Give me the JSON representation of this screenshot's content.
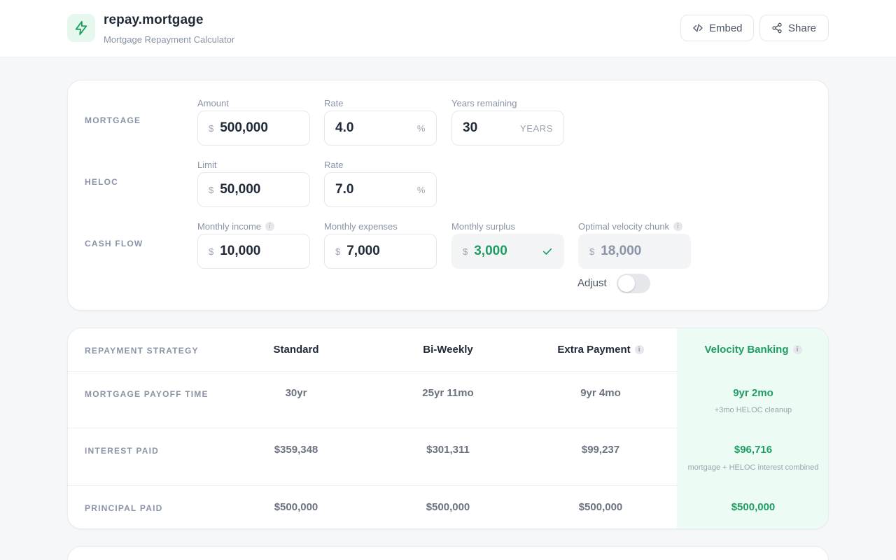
{
  "header": {
    "brand_name": "repay.mortgage",
    "brand_subtitle": "Mortgage Repayment Calculator",
    "embed_label": "Embed",
    "share_label": "Share"
  },
  "inputs": {
    "mortgage": {
      "section_label": "MORTGAGE",
      "amount_label": "Amount",
      "amount_currency": "$",
      "amount_value": "500,000",
      "rate_label": "Rate",
      "rate_value": "4.0",
      "rate_unit": "%",
      "years_label": "Years remaining",
      "years_value": "30",
      "years_unit": "YEARS"
    },
    "heloc": {
      "section_label": "HELOC",
      "limit_label": "Limit",
      "limit_currency": "$",
      "limit_value": "50,000",
      "rate_label": "Rate",
      "rate_value": "7.0",
      "rate_unit": "%"
    },
    "cash_flow": {
      "section_label": "CASH FLOW",
      "income_label": "Monthly income",
      "income_currency": "$",
      "income_value": "10,000",
      "expenses_label": "Monthly expenses",
      "expenses_currency": "$",
      "expenses_value": "7,000",
      "surplus_label": "Monthly surplus",
      "surplus_currency": "$",
      "surplus_value": "3,000",
      "chunk_label": "Optimal velocity chunk",
      "chunk_currency": "$",
      "chunk_value": "18,000",
      "adjust_label": "Adjust",
      "adjust_on": false
    },
    "info_glyph": "i"
  },
  "table": {
    "header_label": "REPAYMENT STRATEGY",
    "columns": [
      "Standard",
      "Bi-Weekly",
      "Extra Payment",
      "Velocity Banking"
    ],
    "rows": [
      {
        "label": "MORTGAGE PAYOFF TIME",
        "values": [
          "30yr",
          "25yr 11mo",
          "9yr 4mo",
          "9yr 2mo"
        ],
        "note": "+3mo HELOC cleanup"
      },
      {
        "label": "INTEREST PAID",
        "values": [
          "$359,348",
          "$301,311",
          "$99,237",
          "$96,716"
        ],
        "note": "mortgage + HELOC interest combined"
      },
      {
        "label": "PRINCIPAL PAID",
        "values": [
          "$500,000",
          "$500,000",
          "$500,000",
          "$500,000"
        ]
      }
    ]
  },
  "colors": {
    "accent_green": "#1f9d63",
    "velocity_bg": "#ecfbf3"
  },
  "icons": {
    "logo": "lightning-bolt-icon",
    "embed": "code-icon",
    "share": "share-nodes-icon",
    "check": "check-icon",
    "info": "info-icon"
  }
}
